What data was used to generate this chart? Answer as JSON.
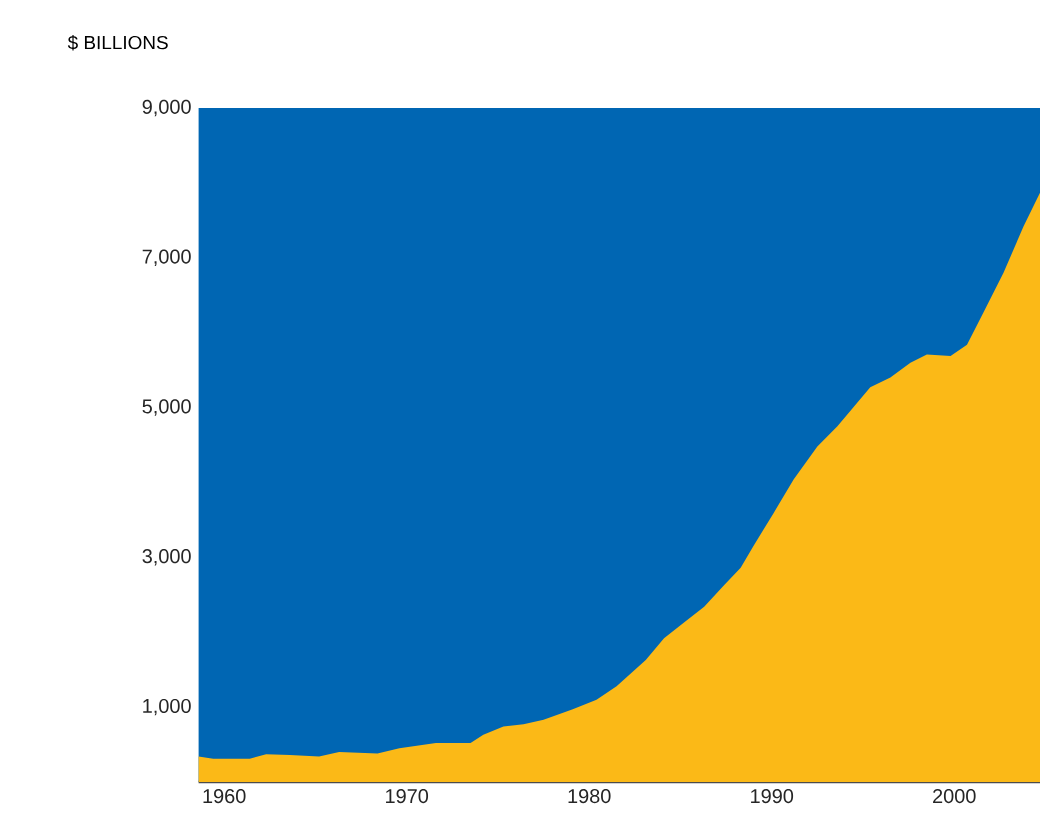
{
  "chart_data": {
    "type": "area",
    "ylabel": "$ BILLIONS",
    "x": [
      1958.6,
      1959.4,
      1961.4,
      1962.3,
      1963.6,
      1965.2,
      1966.3,
      1968.4,
      1969.6,
      1971.6,
      1973.5,
      1974.2,
      1975.3,
      1976.4,
      1977.5,
      1979.1,
      1980.4,
      1981.5,
      1983.1,
      1984.1,
      1985.3,
      1986.3,
      1987.4,
      1988.3,
      1989.0,
      1990.1,
      1991.2,
      1992.5,
      1993.6,
      1995.4,
      1996.5,
      1997.6,
      1998.5,
      1999.8,
      2000.7,
      2001.6,
      2002.7,
      2003.8,
      2004.7
    ],
    "series": [
      {
        "color": "#fbb917",
        "values": [
          340,
          310,
          310,
          370,
          360,
          340,
          400,
          380,
          450,
          520,
          520,
          630,
          740,
          770,
          830,
          970,
          1100,
          1280,
          1630,
          1920,
          2150,
          2340,
          2630,
          2860,
          3150,
          3590,
          4040,
          4480,
          4750,
          5270,
          5400,
          5600,
          5710,
          5690,
          5840,
          6270,
          6800,
          7420,
          7870
        ]
      }
    ],
    "bands": [
      {
        "axis": "y",
        "from": 0,
        "to": 9000,
        "color": "#0066b3"
      }
    ],
    "xlim": [
      1958.6,
      2004.7
    ],
    "ylim": [
      0,
      9000
    ],
    "xticks": [
      1960,
      1970,
      1980,
      1990,
      2000
    ],
    "yticks": [
      {
        "value": 1000,
        "label": "1,000"
      },
      {
        "value": 3000,
        "label": "3,000"
      },
      {
        "value": 5000,
        "label": "5,000"
      },
      {
        "value": 7000,
        "label": "7,000"
      },
      {
        "value": 9000,
        "label": "9,000"
      }
    ]
  }
}
